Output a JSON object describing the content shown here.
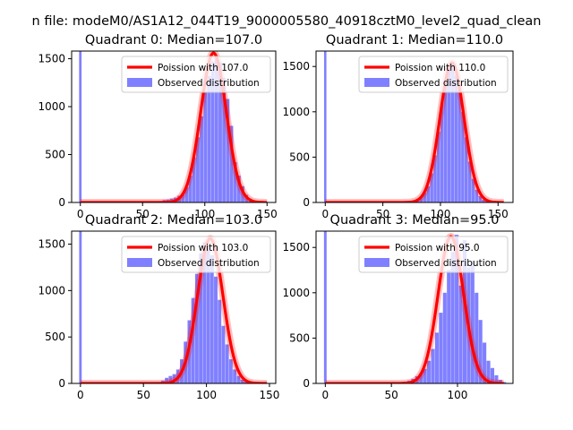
{
  "suptitle": "n file: modeM0/AS1A12_044T19_9000005580_40918cztM0_level2_quad_clean",
  "chart_data": [
    {
      "type": "bar",
      "title": "Quadrant 0: Median=107.0",
      "median": 107.0,
      "xlim": [
        -7,
        157
      ],
      "ylim": [
        0,
        1580
      ],
      "xticks": [
        0,
        50,
        100,
        150
      ],
      "yticks": [
        0,
        500,
        1000,
        1500
      ],
      "legend_loc": "upper-right",
      "legend": [
        "Poission with 107.0",
        "Observed distribution"
      ],
      "bar_color": "#8080ff",
      "line_color": "#ff0000",
      "zero_bin_value": 1580,
      "bins": {
        "start": 60,
        "width": 3,
        "values": [
          10,
          15,
          25,
          30,
          40,
          50,
          70,
          90,
          160,
          280,
          470,
          680,
          900,
          1150,
          1320,
          1470,
          1520,
          1460,
          1300,
          1080,
          800,
          420,
          280,
          170,
          80,
          40,
          20,
          10,
          5
        ]
      },
      "poisson_mean": 107.0,
      "poisson_peak": 1560,
      "poisson_sd": 10.3,
      "curve_range": [
        0,
        150
      ]
    },
    {
      "type": "bar",
      "title": "Quadrant 1: Median=110.0",
      "median": 110.0,
      "xlim": [
        -8,
        163
      ],
      "ylim": [
        0,
        1670
      ],
      "xticks": [
        0,
        50,
        100,
        150
      ],
      "yticks": [
        0,
        500,
        1000,
        1500
      ],
      "legend_loc": "upper-right",
      "legend": [
        "Poission with 110.0",
        "Observed distribution"
      ],
      "bar_color": "#8080ff",
      "line_color": "#ff0000",
      "zero_bin_value": 1670,
      "bins": {
        "start": 70,
        "width": 3,
        "values": [
          5,
          10,
          20,
          40,
          60,
          110,
          180,
          320,
          520,
          780,
          1100,
          1350,
          1500,
          1550,
          1400,
          1250,
          1000,
          720,
          450,
          260,
          140,
          70,
          30,
          15,
          8
        ]
      },
      "poisson_mean": 110.0,
      "poisson_peak": 1540,
      "poisson_sd": 10.5,
      "curve_range": [
        0,
        155
      ]
    },
    {
      "type": "bar",
      "title": "Quadrant 2: Median=103.0",
      "median": 103.0,
      "xlim": [
        -7,
        155
      ],
      "ylim": [
        0,
        1640
      ],
      "xticks": [
        0,
        50,
        100,
        150
      ],
      "yticks": [
        0,
        500,
        1000,
        1500
      ],
      "legend_loc": "upper-right",
      "legend": [
        "Poission with 103.0",
        "Observed distribution"
      ],
      "bar_color": "#8080ff",
      "line_color": "#ff0000",
      "zero_bin_value": 1640,
      "bins": {
        "start": 58,
        "width": 3,
        "values": [
          8,
          15,
          30,
          60,
          80,
          100,
          150,
          260,
          450,
          680,
          920,
          1180,
          1400,
          1520,
          1480,
          1380,
          1150,
          900,
          620,
          420,
          260,
          150,
          80,
          40,
          20,
          10
        ]
      },
      "poisson_mean": 103.0,
      "poisson_peak": 1560,
      "poisson_sd": 10.1,
      "curve_range": [
        0,
        148
      ]
    },
    {
      "type": "bar",
      "title": "Quadrant 3: Median=95.0",
      "median": 95.0,
      "xlim": [
        -7,
        142
      ],
      "ylim": [
        0,
        1680
      ],
      "xticks": [
        0,
        50,
        100
      ],
      "yticks": [
        0,
        500,
        1000,
        1500
      ],
      "legend_loc": "upper-right",
      "legend": [
        "Poission with 95.0",
        "Observed distribution"
      ],
      "bar_color": "#8080ff",
      "line_color": "#ff0000",
      "zero_bin_value": 1680,
      "bins": {
        "start": 56,
        "width": 3,
        "values": [
          10,
          20,
          30,
          50,
          80,
          110,
          160,
          250,
          380,
          560,
          780,
          1000,
          1250,
          1450,
          1640,
          1080,
          1580,
          1280,
          1350,
          1000,
          700,
          450,
          250,
          170,
          90,
          40,
          15
        ]
      },
      "poisson_mean": 95.0,
      "poisson_peak": 1620,
      "poisson_sd": 9.7,
      "curve_range": [
        0,
        135
      ]
    }
  ]
}
